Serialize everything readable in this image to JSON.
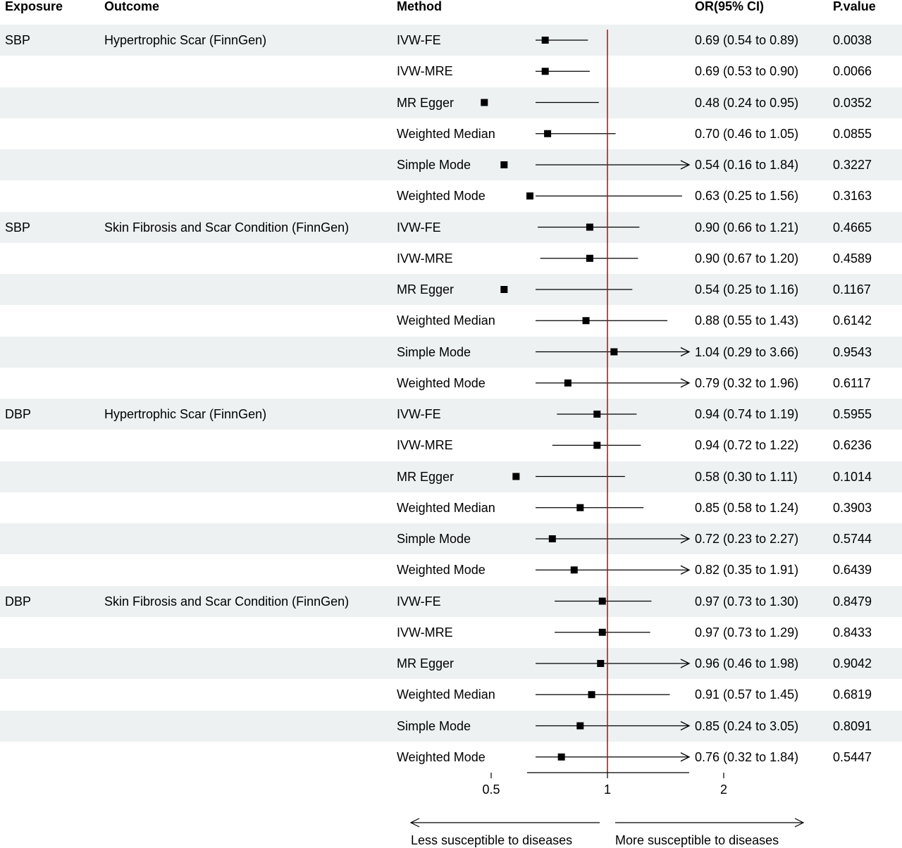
{
  "headers": {
    "exposure": "Exposure",
    "outcome": "Outcome",
    "method": "Method",
    "or_ci": "OR(95% CI)",
    "pvalue": "P.value"
  },
  "chart_data": {
    "type": "forest",
    "x_scale": "log",
    "xlim": [
      0.3,
      2
    ],
    "reference_line": 1,
    "reference_line_color": "#cc0000",
    "row_shading": "#edf1f1",
    "x_ticks": [
      0.5,
      1,
      2
    ],
    "x_tick_labels": [
      "0.5",
      "1",
      "2"
    ],
    "direction_left": "Less susceptible to diseases",
    "direction_right": "More susceptible to diseases",
    "rows": [
      {
        "exposure": "SBP",
        "outcome": "Hypertrophic Scar (FinnGen)",
        "method": "IVW-FE",
        "or": 0.69,
        "lo": 0.54,
        "hi": 0.89,
        "or_text": "0.69 (0.54 to 0.89)",
        "p": "0.0038"
      },
      {
        "exposure": "",
        "outcome": "",
        "method": "IVW-MRE",
        "or": 0.69,
        "lo": 0.53,
        "hi": 0.9,
        "or_text": "0.69 (0.53 to 0.90)",
        "p": "0.0066"
      },
      {
        "exposure": "",
        "outcome": "",
        "method": "MR Egger",
        "or": 0.48,
        "lo": 0.24,
        "hi": 0.95,
        "or_text": "0.48 (0.24 to 0.95)",
        "p": "0.0352"
      },
      {
        "exposure": "",
        "outcome": "",
        "method": "Weighted Median",
        "or": 0.7,
        "lo": 0.46,
        "hi": 1.05,
        "or_text": "0.70 (0.46 to 1.05)",
        "p": "0.0855"
      },
      {
        "exposure": "",
        "outcome": "",
        "method": "Simple Mode",
        "or": 0.54,
        "lo": 0.16,
        "hi": 1.84,
        "or_text": "0.54 (0.16 to 1.84)",
        "p": "0.3227"
      },
      {
        "exposure": "",
        "outcome": "",
        "method": "Weighted Mode",
        "or": 0.63,
        "lo": 0.25,
        "hi": 1.56,
        "or_text": "0.63 (0.25 to 1.56)",
        "p": "0.3163"
      },
      {
        "exposure": "SBP",
        "outcome": "Skin Fibrosis and Scar Condition (FinnGen)",
        "method": "IVW-FE",
        "or": 0.9,
        "lo": 0.66,
        "hi": 1.21,
        "or_text": "0.90 (0.66 to 1.21)",
        "p": "0.4665"
      },
      {
        "exposure": "",
        "outcome": "",
        "method": "IVW-MRE",
        "or": 0.9,
        "lo": 0.67,
        "hi": 1.2,
        "or_text": "0.90 (0.67 to 1.20)",
        "p": "0.4589"
      },
      {
        "exposure": "",
        "outcome": "",
        "method": "MR Egger",
        "or": 0.54,
        "lo": 0.25,
        "hi": 1.16,
        "or_text": "0.54 (0.25 to 1.16)",
        "p": "0.1167"
      },
      {
        "exposure": "",
        "outcome": "",
        "method": "Weighted Median",
        "or": 0.88,
        "lo": 0.55,
        "hi": 1.43,
        "or_text": "0.88 (0.55 to 1.43)",
        "p": "0.6142"
      },
      {
        "exposure": "",
        "outcome": "",
        "method": "Simple Mode",
        "or": 1.04,
        "lo": 0.29,
        "hi": 3.66,
        "or_text": "1.04 (0.29 to 3.66)",
        "p": "0.9543"
      },
      {
        "exposure": "",
        "outcome": "",
        "method": "Weighted Mode",
        "or": 0.79,
        "lo": 0.32,
        "hi": 1.96,
        "or_text": "0.79 (0.32 to 1.96)",
        "p": "0.6117"
      },
      {
        "exposure": "DBP",
        "outcome": "Hypertrophic Scar (FinnGen)",
        "method": "IVW-FE",
        "or": 0.94,
        "lo": 0.74,
        "hi": 1.19,
        "or_text": "0.94 (0.74 to 1.19)",
        "p": "0.5955"
      },
      {
        "exposure": "",
        "outcome": "",
        "method": "IVW-MRE",
        "or": 0.94,
        "lo": 0.72,
        "hi": 1.22,
        "or_text": "0.94 (0.72 to 1.22)",
        "p": "0.6236"
      },
      {
        "exposure": "",
        "outcome": "",
        "method": "MR Egger",
        "or": 0.58,
        "lo": 0.3,
        "hi": 1.11,
        "or_text": "0.58 (0.30 to 1.11)",
        "p": "0.1014"
      },
      {
        "exposure": "",
        "outcome": "",
        "method": "Weighted Median",
        "or": 0.85,
        "lo": 0.58,
        "hi": 1.24,
        "or_text": "0.85 (0.58 to 1.24)",
        "p": "0.3903"
      },
      {
        "exposure": "",
        "outcome": "",
        "method": "Simple Mode",
        "or": 0.72,
        "lo": 0.23,
        "hi": 2.27,
        "or_text": "0.72 (0.23 to 2.27)",
        "p": "0.5744"
      },
      {
        "exposure": "",
        "outcome": "",
        "method": "Weighted Mode",
        "or": 0.82,
        "lo": 0.35,
        "hi": 1.91,
        "or_text": "0.82 (0.35 to 1.91)",
        "p": "0.6439"
      },
      {
        "exposure": "DBP",
        "outcome": "Skin Fibrosis and Scar Condition (FinnGen)",
        "method": "IVW-FE",
        "or": 0.97,
        "lo": 0.73,
        "hi": 1.3,
        "or_text": "0.97 (0.73 to 1.30)",
        "p": "0.8479"
      },
      {
        "exposure": "",
        "outcome": "",
        "method": "IVW-MRE",
        "or": 0.97,
        "lo": 0.73,
        "hi": 1.29,
        "or_text": "0.97 (0.73 to 1.29)",
        "p": "0.8433"
      },
      {
        "exposure": "",
        "outcome": "",
        "method": "MR Egger",
        "or": 0.96,
        "lo": 0.46,
        "hi": 1.98,
        "or_text": "0.96 (0.46 to 1.98)",
        "p": "0.9042"
      },
      {
        "exposure": "",
        "outcome": "",
        "method": "Weighted Median",
        "or": 0.91,
        "lo": 0.57,
        "hi": 1.45,
        "or_text": "0.91 (0.57 to 1.45)",
        "p": "0.6819"
      },
      {
        "exposure": "",
        "outcome": "",
        "method": "Simple Mode",
        "or": 0.85,
        "lo": 0.24,
        "hi": 3.05,
        "or_text": "0.85 (0.24 to 3.05)",
        "p": "0.8091"
      },
      {
        "exposure": "",
        "outcome": "",
        "method": "Weighted Mode",
        "or": 0.76,
        "lo": 0.32,
        "hi": 1.84,
        "or_text": "0.76 (0.32 to 1.84)",
        "p": "0.5447"
      }
    ]
  }
}
